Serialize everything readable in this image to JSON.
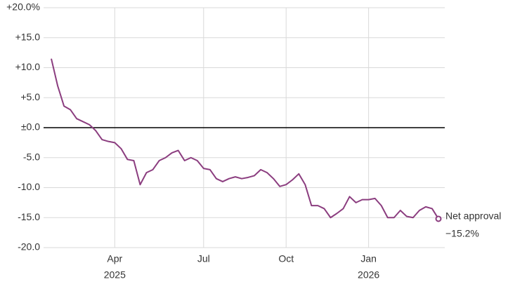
{
  "chart_data": {
    "type": "line",
    "categories": [
      null,
      null,
      null,
      null,
      null,
      null,
      null,
      null,
      null,
      null,
      "Apr",
      null,
      null,
      null,
      null,
      null,
      null,
      null,
      null,
      null,
      null,
      null,
      null,
      null,
      "Jul",
      null,
      null,
      null,
      null,
      null,
      null,
      null,
      null,
      null,
      null,
      null,
      null,
      "Oct",
      null,
      null,
      null,
      null,
      null,
      null,
      null,
      null,
      null,
      null,
      null,
      null,
      "Jan",
      null,
      null,
      null,
      null,
      null,
      null,
      null,
      null,
      null,
      null,
      null
    ],
    "x_sublabels": [
      null,
      null,
      null,
      null,
      null,
      null,
      null,
      null,
      null,
      null,
      "2025",
      null,
      null,
      null,
      null,
      null,
      null,
      null,
      null,
      null,
      null,
      null,
      null,
      null,
      null,
      null,
      null,
      null,
      null,
      null,
      null,
      null,
      null,
      null,
      null,
      null,
      null,
      null,
      null,
      null,
      null,
      null,
      null,
      null,
      null,
      null,
      null,
      null,
      null,
      null,
      "2026",
      null,
      null,
      null,
      null,
      null,
      null,
      null,
      null,
      null,
      null,
      null
    ],
    "series": [
      {
        "name": "Net approval",
        "color": "#8b3d7f",
        "values": [
          11.5,
          7,
          3.6,
          3,
          1.5,
          1,
          0.5,
          -0.5,
          -2,
          -2.3,
          -2.5,
          -3.5,
          -5.3,
          -5.5,
          -9.5,
          -7.5,
          -7,
          -5.5,
          -5,
          -4.2,
          -3.8,
          -5.5,
          -5,
          -5.5,
          -6.8,
          -7,
          -8.5,
          -9,
          -8.5,
          -8.2,
          -8.5,
          -8.3,
          -8,
          -7,
          -7.5,
          -8.5,
          -9.8,
          -9.5,
          -8.7,
          -7.7,
          -9.5,
          -13,
          -13,
          -13.5,
          -15,
          -14.3,
          -13.5,
          -11.5,
          -12.5,
          -12,
          -12,
          -11.8,
          -13,
          -15,
          -15,
          -13.8,
          -14.8,
          -15,
          -13.8,
          -13.2,
          -13.5,
          -15.2
        ],
        "value_labels": [
          null,
          null,
          null,
          null,
          null,
          null,
          null,
          null,
          null,
          null,
          null,
          null,
          null,
          null,
          null,
          null,
          null,
          null,
          null,
          null,
          null,
          null,
          null,
          null,
          null,
          null,
          null,
          null,
          null,
          null,
          null,
          null,
          null,
          null,
          null,
          null,
          null,
          null,
          null,
          null,
          null,
          null,
          null,
          null,
          null,
          null,
          null,
          null,
          null,
          null,
          null,
          null,
          null,
          null,
          null,
          null,
          null,
          null,
          null,
          null,
          null,
          "−15.2%"
        ]
      }
    ],
    "ylim": [
      -20,
      20
    ],
    "yticks": [
      {
        "value": -20,
        "label": "-20.0"
      },
      {
        "value": -15,
        "label": "-15.0"
      },
      {
        "value": -10,
        "label": "-10.0"
      },
      {
        "value": -5,
        "label": "-5.0"
      },
      {
        "value": 0,
        "label": "±0.0"
      },
      {
        "value": 5,
        "label": "+5.0"
      },
      {
        "value": 10,
        "label": "+10.0"
      },
      {
        "value": 15,
        "label": "+15.0"
      },
      {
        "value": 20,
        "label": "+20.0%"
      }
    ],
    "grid": true
  }
}
